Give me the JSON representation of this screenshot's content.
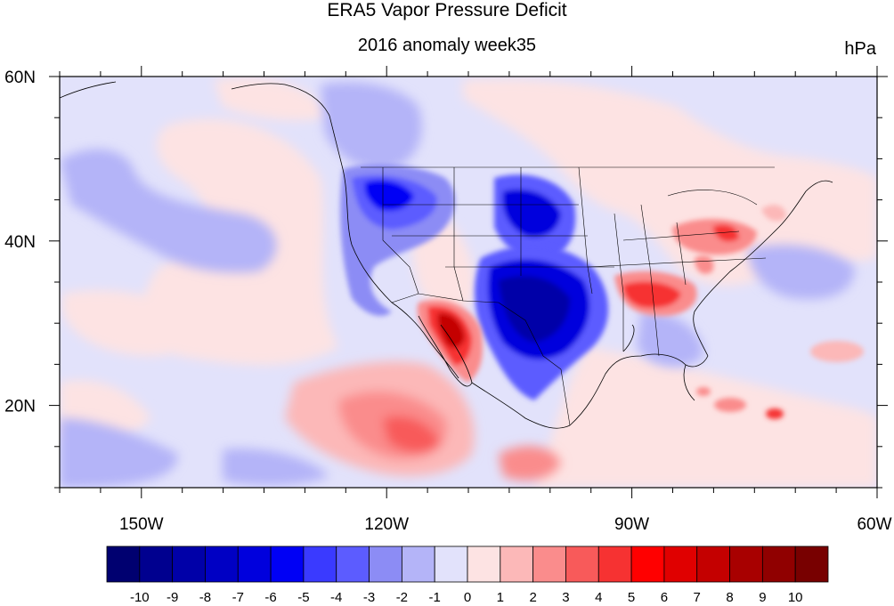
{
  "title": "ERA5 Vapor Pressure Deficit",
  "subtitle": "2016 anomaly week35",
  "units": "hPa",
  "map": {
    "lon_range": [
      -160,
      -60
    ],
    "lat_range": [
      10,
      60
    ],
    "x_ticks": [
      {
        "lon": -150,
        "label": "150W"
      },
      {
        "lon": -120,
        "label": "120W"
      },
      {
        "lon": -90,
        "label": "90W"
      },
      {
        "lon": -60,
        "label": "60W"
      }
    ],
    "y_ticks": [
      {
        "lat": 60,
        "label": "60N"
      },
      {
        "lat": 40,
        "label": "40N"
      },
      {
        "lat": 20,
        "label": "20N"
      }
    ]
  },
  "colorbar": {
    "labels": [
      "-10",
      "-9",
      "-8",
      "-7",
      "-6",
      "-5",
      "-4",
      "-3",
      "-2",
      "-1",
      "0",
      "1",
      "2",
      "3",
      "4",
      "5",
      "6",
      "7",
      "8",
      "9",
      "10"
    ],
    "colors": [
      "#000070",
      "#00008f",
      "#0000a8",
      "#0000c4",
      "#0000dd",
      "#0000f5",
      "#3a3aff",
      "#5c5cff",
      "#8c8cf5",
      "#b4b4f8",
      "#e2e2fb",
      "#fde3e3",
      "#fcb8b8",
      "#fa8c8c",
      "#f85a5a",
      "#f63232",
      "#ff0000",
      "#e00000",
      "#c40000",
      "#a80000",
      "#900000",
      "#780000"
    ]
  },
  "anomaly_features": [
    {
      "name": "western-us-dry-negative",
      "value": -7
    },
    {
      "name": "southern-plains-negative",
      "value": -9
    },
    {
      "name": "baja-sonora-positive",
      "value": 8
    },
    {
      "name": "eastern-pacific-positive",
      "value": 4
    },
    {
      "name": "southeast-us-positive",
      "value": 5
    },
    {
      "name": "northeast-us-positive",
      "value": 5
    }
  ]
}
